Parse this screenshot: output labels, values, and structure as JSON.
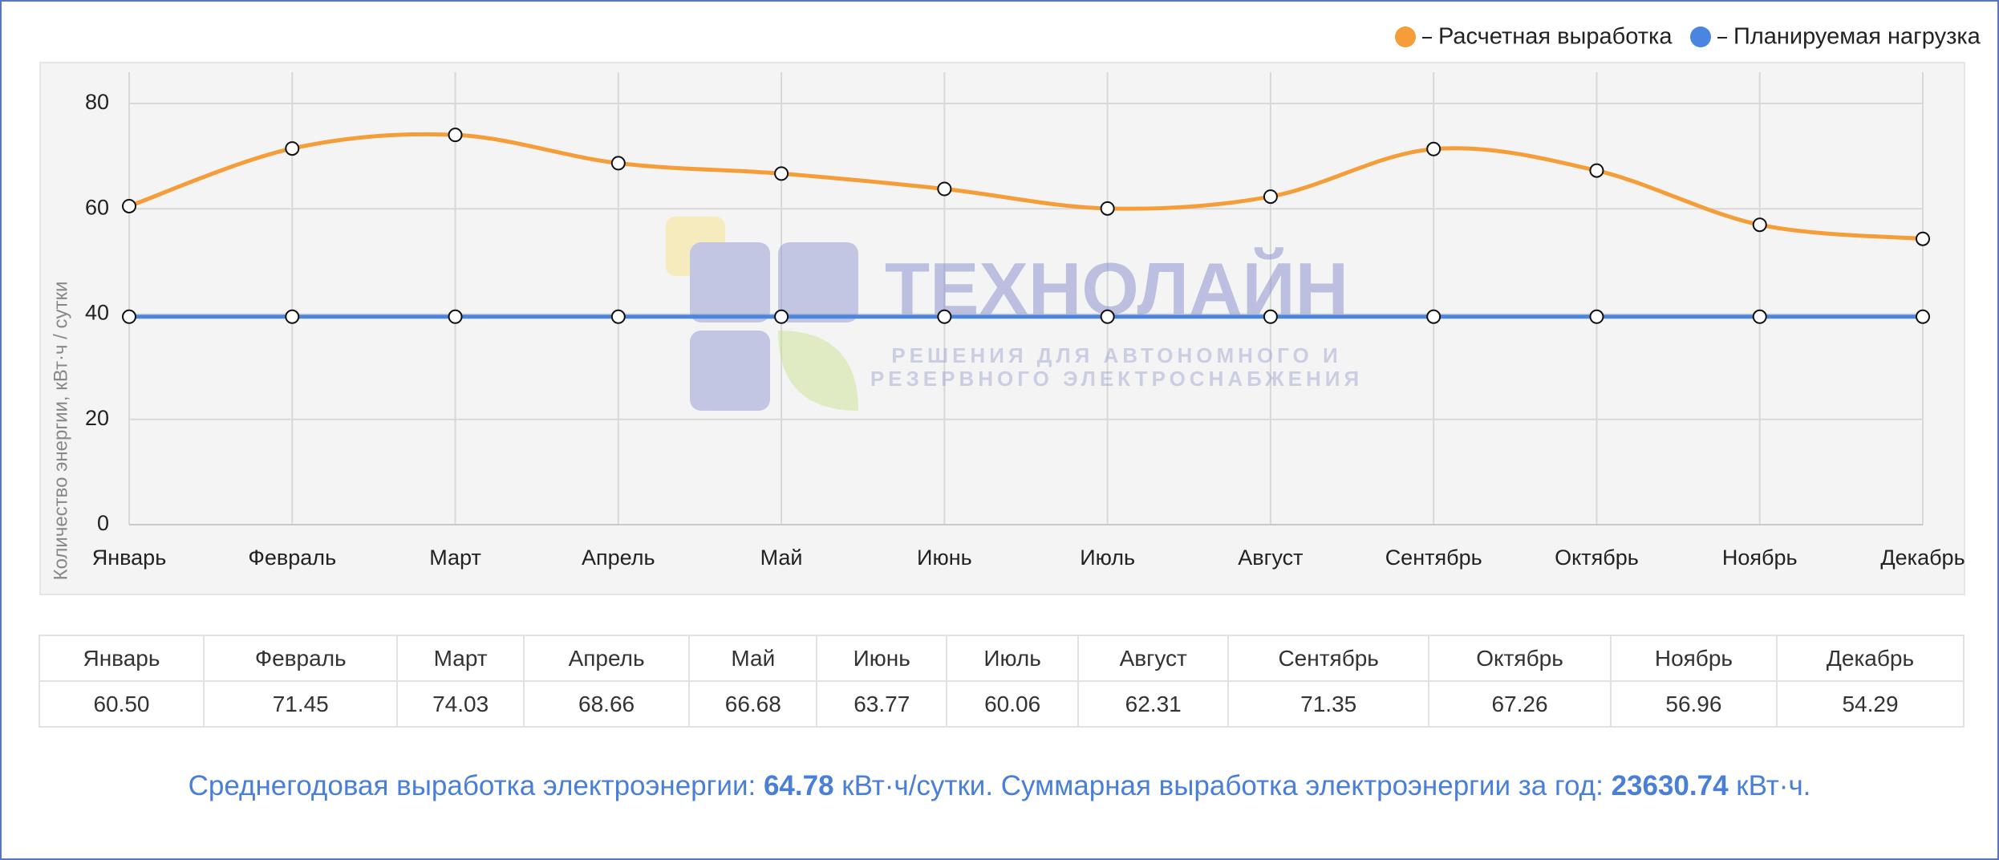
{
  "chart_data": {
    "type": "line",
    "categories": [
      "Январь",
      "Февраль",
      "Март",
      "Апрель",
      "Май",
      "Июнь",
      "Июль",
      "Август",
      "Сентябрь",
      "Октябрь",
      "Ноябрь",
      "Декабрь"
    ],
    "series": [
      {
        "name": "Расчетная выработка",
        "color": "#f59d38",
        "values": [
          60.5,
          71.45,
          74.03,
          68.66,
          66.68,
          63.77,
          60.06,
          62.31,
          71.35,
          67.26,
          56.96,
          54.29
        ]
      },
      {
        "name": "Планируемая нагрузка",
        "color": "#4a86e0",
        "values": [
          39.5,
          39.5,
          39.5,
          39.5,
          39.5,
          39.5,
          39.5,
          39.5,
          39.5,
          39.5,
          39.5,
          39.5
        ]
      }
    ],
    "ylabel": "Количество энергии, кВт·ч / сутки",
    "ylim": [
      0,
      80
    ],
    "yticks": [
      0,
      20,
      40,
      60,
      80
    ],
    "grid": true,
    "legend": "top-right"
  },
  "watermark": {
    "title": "ТЕХНОЛАЙН",
    "line1": "РЕШЕНИЯ ДЛЯ АВТОНОМНОГО И",
    "line2": "РЕЗЕРВНОГО ЭЛЕКТРОСНАБЖЕНИЯ"
  },
  "table": {
    "header": [
      "Январь",
      "Февраль",
      "Март",
      "Апрель",
      "Май",
      "Июнь",
      "Июль",
      "Август",
      "Сентябрь",
      "Октябрь",
      "Ноябрь",
      "Декабрь"
    ],
    "values": [
      "60.50",
      "71.45",
      "74.03",
      "68.66",
      "66.68",
      "63.77",
      "60.06",
      "62.31",
      "71.35",
      "67.26",
      "56.96",
      "54.29"
    ]
  },
  "summary": {
    "prefix": "Среднегодовая выработка электроэнергии: ",
    "avg": "64.78",
    "mid": " кВт·ч/сутки. Суммарная выработка электроэнергии за год: ",
    "total": "23630.74",
    "unit": " кВт·ч."
  }
}
